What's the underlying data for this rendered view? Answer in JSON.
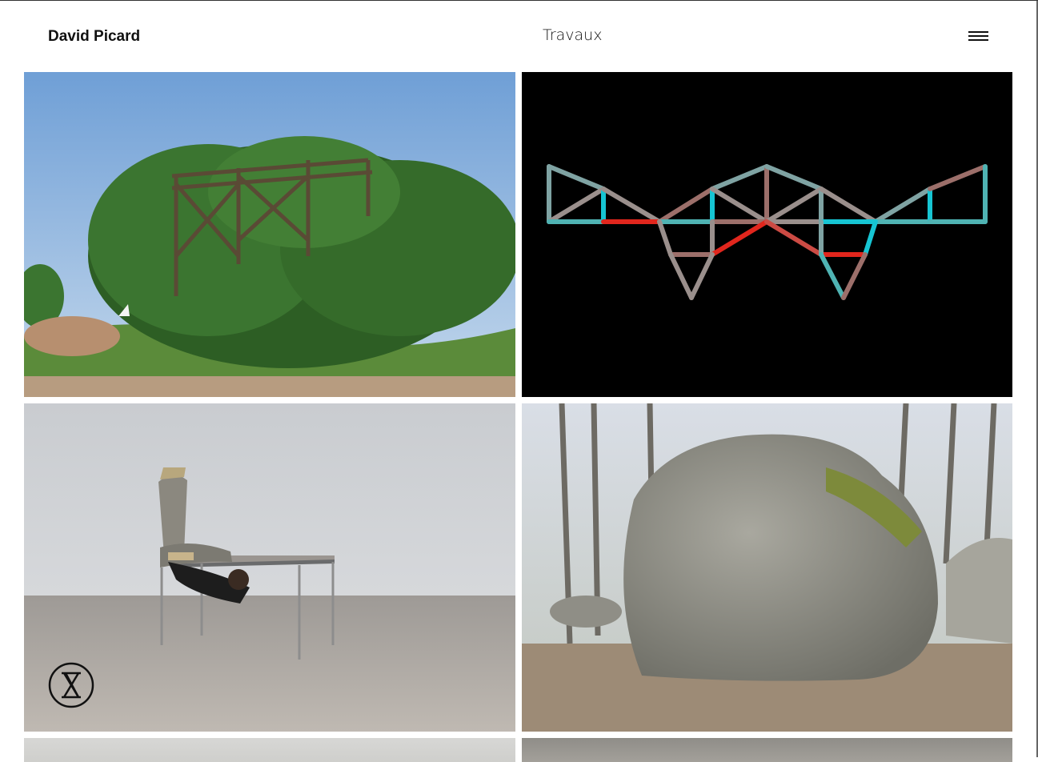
{
  "header": {
    "site_name": "David Picard",
    "page_title": "Travaux",
    "menu_icon": "hamburger-menu-icon"
  },
  "gallery": {
    "tiles": [
      {
        "subject": "rusted steel pylon structure overgrown with trees"
      },
      {
        "subject": "colored truss line drawing on black"
      },
      {
        "subject": "performer contorted under a table in gallery"
      },
      {
        "subject": "large boulder in forest"
      },
      {
        "subject": "partial tile"
      },
      {
        "subject": "partial tile"
      }
    ]
  },
  "badge": {
    "icon": "hourglass-logo-icon"
  },
  "colors": {
    "teal": "#4fb3b3",
    "cyan": "#16c5d3",
    "red": "#e1261d",
    "rose": "#9c6f6a",
    "grey": "#8a8888"
  }
}
